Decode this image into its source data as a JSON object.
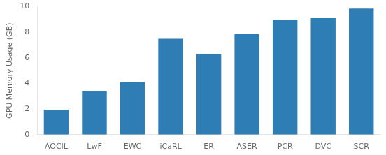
{
  "chart_data": {
    "type": "bar",
    "categories": [
      "AOCIL",
      "LwF",
      "EWC",
      "iCaRL",
      "ER",
      "ASER",
      "PCR",
      "DVC",
      "SCR"
    ],
    "values": [
      1.95,
      3.4,
      4.1,
      7.5,
      6.3,
      7.85,
      9.0,
      9.1,
      9.85
    ],
    "color": "#2e7eb5",
    "ylabel": "GPU Memory Usage (GB)",
    "ylim": [
      0,
      10
    ],
    "yticks": [
      0,
      2,
      4,
      6,
      8,
      10
    ],
    "grid": false
  }
}
